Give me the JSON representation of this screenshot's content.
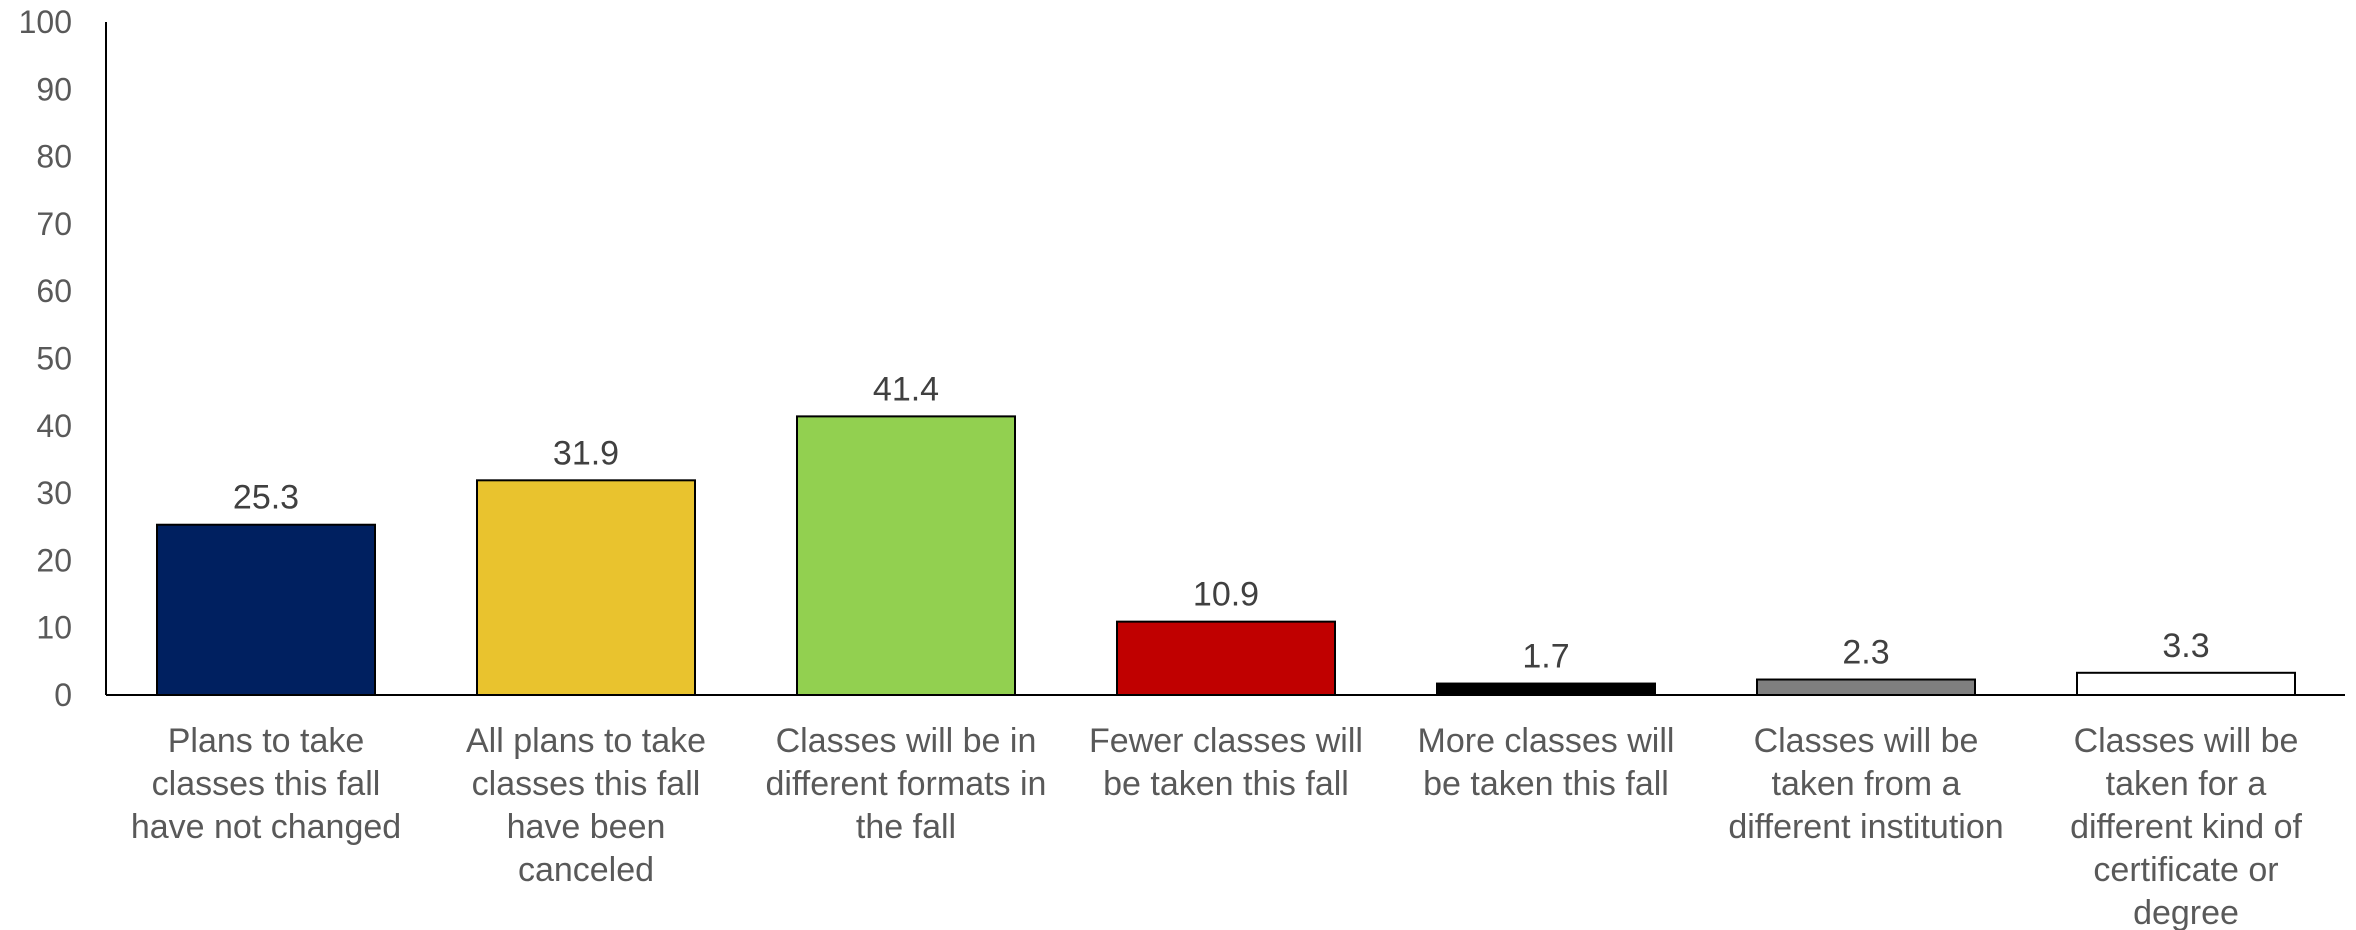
{
  "chart_data": {
    "type": "bar",
    "categories": [
      [
        "Plans to take",
        "classes this fall",
        "have not changed"
      ],
      [
        "All plans to take",
        "classes this fall",
        "have been",
        "canceled"
      ],
      [
        "Classes will be in",
        "different formats in",
        "the fall"
      ],
      [
        "Fewer classes will",
        "be taken this fall"
      ],
      [
        "More classes will",
        "be taken this fall"
      ],
      [
        "Classes will be",
        "taken from a",
        "different institution"
      ],
      [
        "Classes will be",
        "taken for a",
        "different kind of",
        "certificate or",
        "degree"
      ]
    ],
    "values": [
      25.3,
      31.9,
      41.4,
      10.9,
      1.7,
      2.3,
      3.3
    ],
    "value_labels": [
      "25.3",
      "31.9",
      "41.4",
      "10.9",
      "1.7",
      "2.3",
      "3.3"
    ],
    "bar_colors": [
      "#002060",
      "#E9C32E",
      "#92D050",
      "#C00000",
      "#000000",
      "#7F7F7F",
      "#FFFFFF"
    ],
    "ylim": [
      0,
      100
    ],
    "yticks": [
      0,
      10,
      20,
      30,
      40,
      50,
      60,
      70,
      80,
      90,
      100
    ],
    "ytick_labels": [
      "0",
      "10",
      "20",
      "30",
      "40",
      "50",
      "60",
      "70",
      "80",
      "90",
      "100"
    ],
    "title": "",
    "xlabel": "",
    "ylabel": "",
    "grid": false,
    "legend": "none"
  }
}
